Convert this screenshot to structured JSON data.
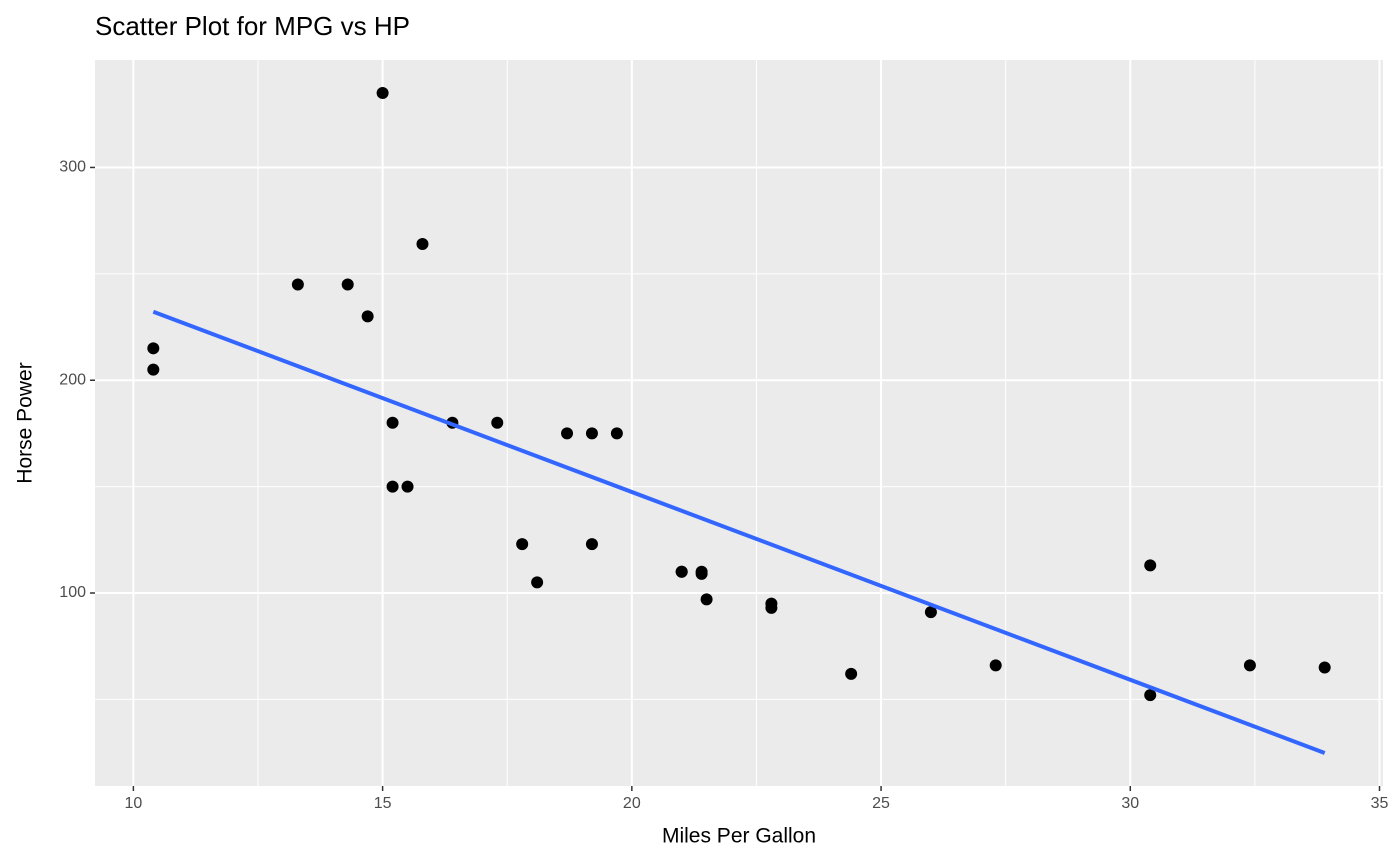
{
  "chart_data": {
    "type": "scatter",
    "title": "Scatter Plot for MPG vs HP",
    "x_label": "Miles Per Gallon",
    "y_label": "Horse Power",
    "series": [
      {
        "color": "#000000",
        "x": [
          21,
          21,
          22.8,
          21.4,
          18.7,
          18.1,
          14.3,
          24.4,
          22.8,
          19.2,
          17.8,
          16.4,
          17.3,
          15.2,
          10.4,
          10.4,
          14.7,
          32.4,
          30.4,
          33.9,
          21.5,
          15.5,
          15.2,
          13.3,
          19.2,
          27.3,
          26,
          30.4,
          15.8,
          19.7,
          15,
          21.4
        ],
        "values": [
          110,
          110,
          93,
          110,
          175,
          105,
          245,
          62,
          95,
          123,
          123,
          180,
          180,
          180,
          205,
          215,
          230,
          66,
          52,
          65,
          97,
          150,
          150,
          245,
          175,
          66,
          91,
          113,
          264,
          175,
          335,
          109
        ]
      }
    ],
    "trend_line": {
      "color": "#3366FF",
      "x": [
        10.4,
        33.9
      ],
      "values": [
        232.2,
        24.8
      ]
    },
    "xlim": [
      9.23,
      35.07
    ],
    "ylim": [
      9.3,
      350.5
    ],
    "xticks": [
      10,
      15,
      20,
      25,
      30,
      35
    ],
    "yticks": [
      100,
      200,
      300
    ],
    "xminor": [
      12.5,
      17.5,
      22.5,
      27.5,
      32.5
    ],
    "yminor": [
      50,
      150,
      250
    ],
    "grid": true
  }
}
